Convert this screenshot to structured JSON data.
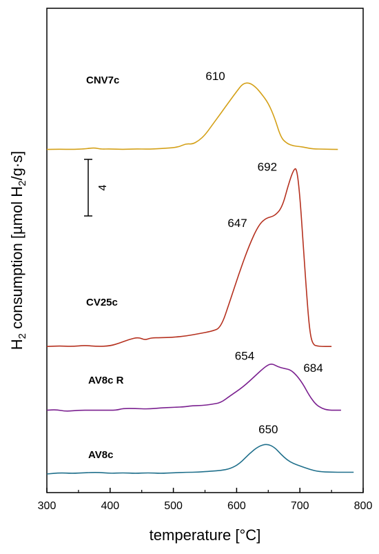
{
  "chart_data": {
    "type": "line",
    "title": "",
    "xlabel": "temperature [°C]",
    "ylabel_parts": {
      "main": "H",
      "sub1": "2",
      "mid": " consumption [µmol H",
      "sub2": "2",
      "end": "/g·s]"
    },
    "xlim": [
      300,
      800
    ],
    "xticks": [
      300,
      400,
      500,
      600,
      700,
      800
    ],
    "yaxis_ticks_shown": false,
    "grid": false,
    "legend": "none",
    "scale_bar": {
      "label": "4",
      "units": 4
    },
    "series": [
      {
        "name": "CNV7c",
        "color": "#d4a017",
        "baseline_offset": 56,
        "peak_labels": [
          {
            "text": "610",
            "x": 610,
            "y": 12.2
          }
        ],
        "points": [
          [
            300,
            0.0
          ],
          [
            320,
            0.05
          ],
          [
            340,
            0.0
          ],
          [
            360,
            0.1
          ],
          [
            375,
            0.3
          ],
          [
            385,
            0.05
          ],
          [
            400,
            0.1
          ],
          [
            420,
            0.0
          ],
          [
            440,
            0.1
          ],
          [
            460,
            0.05
          ],
          [
            480,
            0.15
          ],
          [
            500,
            0.3
          ],
          [
            510,
            0.5
          ],
          [
            520,
            1.0
          ],
          [
            530,
            0.9
          ],
          [
            540,
            1.5
          ],
          [
            550,
            2.5
          ],
          [
            560,
            4.0
          ],
          [
            570,
            5.5
          ],
          [
            580,
            7.0
          ],
          [
            590,
            8.5
          ],
          [
            600,
            10.0
          ],
          [
            610,
            11.4
          ],
          [
            620,
            11.5
          ],
          [
            630,
            10.8
          ],
          [
            640,
            9.5
          ],
          [
            650,
            8.0
          ],
          [
            660,
            5.5
          ],
          [
            670,
            2.0
          ],
          [
            680,
            1.0
          ],
          [
            690,
            0.6
          ],
          [
            700,
            0.5
          ],
          [
            710,
            0.3
          ],
          [
            720,
            0.1
          ],
          [
            740,
            0.05
          ],
          [
            760,
            0.0
          ]
        ]
      },
      {
        "name": "CV25c",
        "color": "#b5301e",
        "baseline_offset": 22,
        "peak_labels": [
          {
            "text": "692",
            "x": 692,
            "y": 31.5
          },
          {
            "text": "647",
            "x": 647,
            "y": 22.5
          }
        ],
        "points": [
          [
            300,
            0.0
          ],
          [
            320,
            0.1
          ],
          [
            340,
            0.0
          ],
          [
            360,
            0.2
          ],
          [
            380,
            0.0
          ],
          [
            400,
            0.1
          ],
          [
            415,
            0.6
          ],
          [
            430,
            1.2
          ],
          [
            445,
            1.6
          ],
          [
            455,
            1.1
          ],
          [
            465,
            1.5
          ],
          [
            480,
            1.5
          ],
          [
            500,
            1.6
          ],
          [
            520,
            1.8
          ],
          [
            540,
            2.2
          ],
          [
            560,
            2.6
          ],
          [
            575,
            3.2
          ],
          [
            590,
            8.0
          ],
          [
            605,
            13.0
          ],
          [
            620,
            17.5
          ],
          [
            635,
            21.0
          ],
          [
            647,
            22.2
          ],
          [
            660,
            22.5
          ],
          [
            672,
            24.0
          ],
          [
            682,
            28.0
          ],
          [
            690,
            30.5
          ],
          [
            695,
            30.8
          ],
          [
            700,
            26.0
          ],
          [
            705,
            18.0
          ],
          [
            710,
            10.0
          ],
          [
            715,
            3.0
          ],
          [
            720,
            0.3
          ],
          [
            730,
            0.0
          ],
          [
            750,
            0.0
          ]
        ]
      },
      {
        "name": "AV8c R",
        "color": "#7a1f8f",
        "baseline_offset": 11,
        "peak_labels": [
          {
            "text": "654",
            "x": 654,
            "y": 9.4
          },
          {
            "text": "684",
            "x": 684,
            "y": 7.8
          }
        ],
        "points": [
          [
            300,
            0.0
          ],
          [
            315,
            0.1
          ],
          [
            330,
            -0.2
          ],
          [
            350,
            0.0
          ],
          [
            370,
            0.0
          ],
          [
            390,
            0.0
          ],
          [
            410,
            0.0
          ],
          [
            420,
            0.3
          ],
          [
            440,
            0.3
          ],
          [
            460,
            0.2
          ],
          [
            480,
            0.4
          ],
          [
            500,
            0.5
          ],
          [
            520,
            0.6
          ],
          [
            530,
            0.8
          ],
          [
            545,
            0.8
          ],
          [
            560,
            1.0
          ],
          [
            575,
            1.3
          ],
          [
            590,
            2.5
          ],
          [
            610,
            4.0
          ],
          [
            630,
            6.0
          ],
          [
            645,
            7.5
          ],
          [
            655,
            8.1
          ],
          [
            665,
            7.5
          ],
          [
            675,
            7.2
          ],
          [
            685,
            7.0
          ],
          [
            695,
            6.0
          ],
          [
            705,
            4.5
          ],
          [
            715,
            2.5
          ],
          [
            725,
            1.0
          ],
          [
            735,
            0.3
          ],
          [
            745,
            0.0
          ],
          [
            765,
            0.0
          ]
        ]
      },
      {
        "name": "AV8c",
        "color": "#1f6f8b",
        "baseline_offset": 0,
        "peak_labels": [
          {
            "text": "650",
            "x": 650,
            "y": 6.3
          }
        ],
        "points": [
          [
            300,
            0.0
          ],
          [
            320,
            0.2
          ],
          [
            340,
            0.1
          ],
          [
            360,
            0.2
          ],
          [
            380,
            0.3
          ],
          [
            400,
            0.1
          ],
          [
            420,
            0.2
          ],
          [
            440,
            0.1
          ],
          [
            460,
            0.2
          ],
          [
            480,
            0.1
          ],
          [
            500,
            0.2
          ],
          [
            520,
            0.3
          ],
          [
            540,
            0.3
          ],
          [
            560,
            0.5
          ],
          [
            575,
            0.6
          ],
          [
            590,
            0.9
          ],
          [
            605,
            1.8
          ],
          [
            620,
            3.5
          ],
          [
            635,
            4.8
          ],
          [
            648,
            5.2
          ],
          [
            660,
            4.6
          ],
          [
            670,
            3.4
          ],
          [
            680,
            2.4
          ],
          [
            690,
            1.8
          ],
          [
            700,
            1.4
          ],
          [
            715,
            0.8
          ],
          [
            730,
            0.4
          ],
          [
            750,
            0.3
          ],
          [
            770,
            0.3
          ],
          [
            785,
            0.3
          ]
        ]
      }
    ]
  }
}
